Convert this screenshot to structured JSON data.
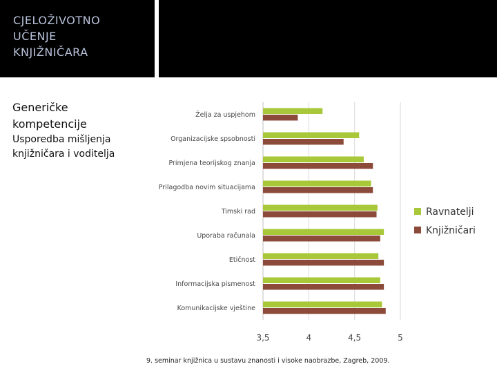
{
  "slide": {
    "title": "CJELOŽIVOTNO\nUČENJE\nKNJIŽNIČARA",
    "heading": "Generičke kompetencije",
    "subheading": "Usporedba mišljenja knjižničara i voditelja",
    "footer": "9. seminar knjižnica u sustavu znanosti i visoke naobrazbe, Zagreb, 2009."
  },
  "colors": {
    "ravnatelji": "#a8c83a",
    "knjiznicari": "#8b4a3a",
    "grid": "#d9d9d9",
    "axis_text": "#444444"
  },
  "chart_data": {
    "type": "bar",
    "orientation": "horizontal",
    "categories": [
      "Želja za uspjehom",
      "Organizacijske spsobnosti",
      "Primjena teorijskog znanja",
      "Prilagodba novim situacijama",
      "Timski rad",
      "Uporaba računala",
      "Etičnost",
      "Informacijska pismenost",
      "Komunikacijske vještine"
    ],
    "series": [
      {
        "name": "Ravnatelji",
        "values": [
          4.15,
          4.55,
          4.6,
          4.68,
          4.75,
          4.82,
          4.76,
          4.78,
          4.8
        ]
      },
      {
        "name": "Knjižničari",
        "values": [
          3.88,
          4.38,
          4.7,
          4.7,
          4.74,
          4.78,
          4.82,
          4.82,
          4.84
        ]
      }
    ],
    "xlim": [
      3.5,
      5
    ],
    "xticks": [
      "3,5",
      "4",
      "4,5",
      "5"
    ],
    "grid": true,
    "legend": "right"
  }
}
